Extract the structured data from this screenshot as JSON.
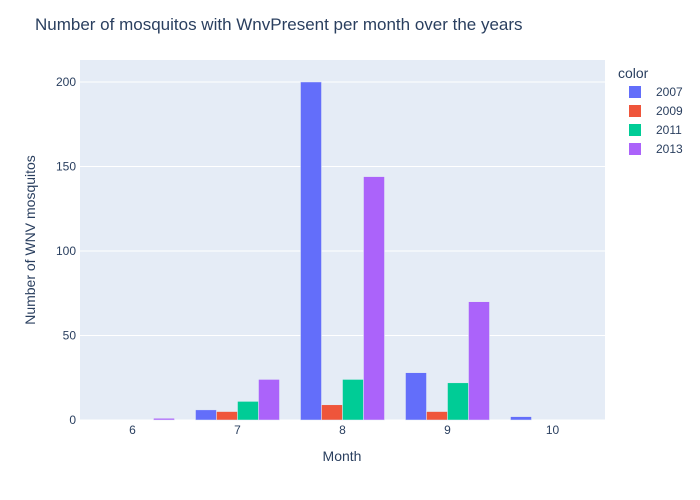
{
  "chart_data": {
    "type": "bar",
    "title": "Number of mosquitos with WnvPresent per month over the years",
    "xlabel": "Month",
    "ylabel": "Number of WNV mosquitos",
    "categories": [
      "6",
      "7",
      "8",
      "9",
      "10"
    ],
    "ylim": [
      0,
      213
    ],
    "yticks": [
      0,
      50,
      100,
      150,
      200
    ],
    "grid": true,
    "barmode": "group",
    "legend": {
      "title": "color",
      "placement": "right"
    },
    "series": [
      {
        "name": "2007",
        "color": "#636efa",
        "values": [
          0,
          6,
          200,
          28,
          2
        ]
      },
      {
        "name": "2009",
        "color": "#ef553b",
        "values": [
          0,
          5,
          9,
          5,
          0
        ]
      },
      {
        "name": "2011",
        "color": "#00cc96",
        "values": [
          0,
          11,
          24,
          22,
          0
        ]
      },
      {
        "name": "2013",
        "color": "#ab63fa",
        "values": [
          1,
          24,
          144,
          70,
          0
        ]
      }
    ]
  }
}
